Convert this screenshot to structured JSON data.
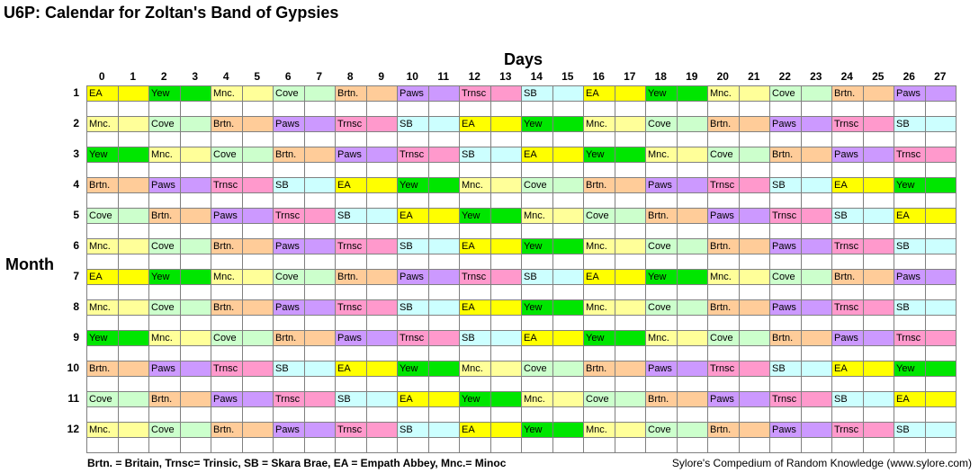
{
  "title": "U6P: Calendar for Zoltan's Band of Gypsies",
  "axis": {
    "days": "Days",
    "month": "Month"
  },
  "days": [
    "0",
    "1",
    "2",
    "3",
    "4",
    "5",
    "6",
    "7",
    "8",
    "9",
    "10",
    "11",
    "12",
    "13",
    "14",
    "15",
    "16",
    "17",
    "18",
    "19",
    "20",
    "21",
    "22",
    "23",
    "24",
    "25",
    "26",
    "27"
  ],
  "months": [
    "1",
    "2",
    "3",
    "4",
    "5",
    "6",
    "7",
    "8",
    "9",
    "10",
    "11",
    "12"
  ],
  "palette": {
    "Yew": "#00e600",
    "Mnc.": "#ffff99",
    "Cove": "#ccffcc",
    "Brtn.": "#ffcc99",
    "Paws": "#cc99ff",
    "Trnsc": "#ff99cc",
    "SB": "#ccffff",
    "EA": "#ffff00"
  },
  "order": [
    "EA",
    "Yew",
    "Mnc.",
    "Cove",
    "Brtn.",
    "Paws",
    "Trnsc",
    "SB"
  ],
  "start_offsets": [
    0,
    4,
    2,
    8,
    6,
    4,
    0,
    4,
    2,
    8,
    6,
    4
  ],
  "legend": "Brtn. = Britain, Trnsc= Trinsic, SB = Skara Brae, EA = Empath Abbey, Mnc.= Minoc",
  "credit": "Sylore's Compedium of Random Knowledge (www.sylore.com)"
}
